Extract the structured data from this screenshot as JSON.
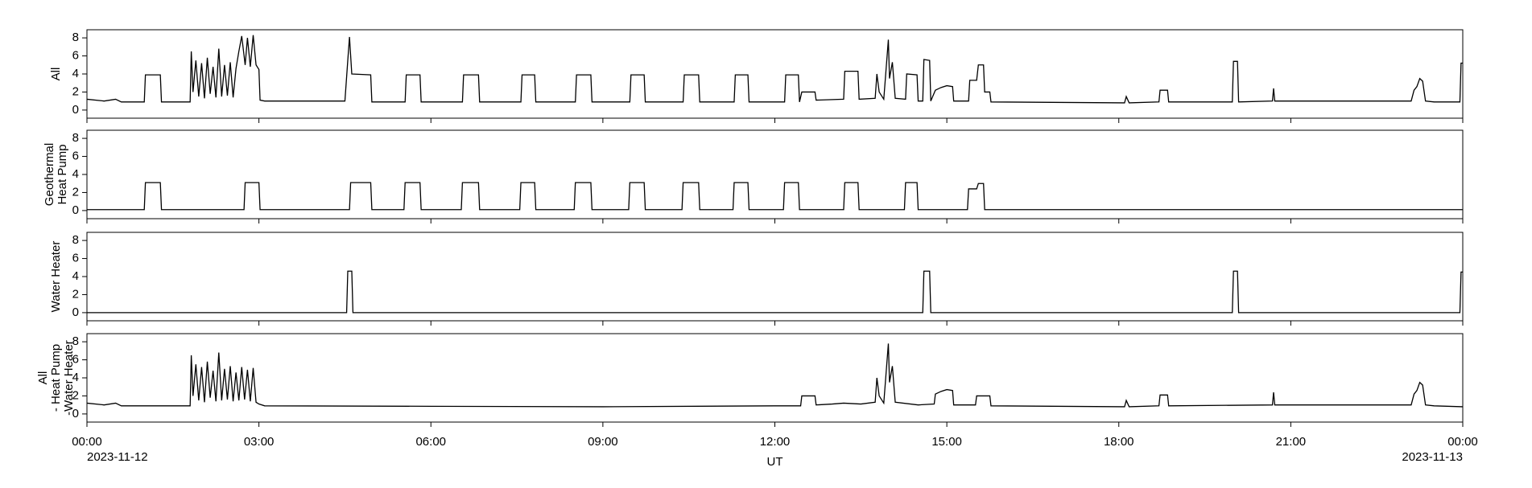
{
  "chart_data": [
    {
      "type": "line",
      "ylabel": [
        "All"
      ],
      "color": "#000000",
      "xlim": [
        0,
        24
      ],
      "ylim": [
        -0.9,
        8.9
      ],
      "yticks": [
        0,
        2,
        4,
        6,
        8
      ],
      "xticks": [
        0,
        3,
        6,
        9,
        12,
        15,
        18,
        21,
        24
      ],
      "x": [
        0,
        0.3,
        0.5,
        0.6,
        1.0,
        1.02,
        1.28,
        1.3,
        1.8,
        1.82,
        1.85,
        1.9,
        1.95,
        2.0,
        2.05,
        2.1,
        2.15,
        2.2,
        2.25,
        2.3,
        2.35,
        2.4,
        2.45,
        2.5,
        2.55,
        2.6,
        2.65,
        2.7,
        2.76,
        2.8,
        2.85,
        2.9,
        2.95,
        3.0,
        3.02,
        3.1,
        4.5,
        4.55,
        4.58,
        4.62,
        4.95,
        4.97,
        5.55,
        5.57,
        5.81,
        5.83,
        6.55,
        6.57,
        6.83,
        6.85,
        7.57,
        7.59,
        7.81,
        7.83,
        8.52,
        8.54,
        8.79,
        8.81,
        9.47,
        9.49,
        9.72,
        9.74,
        10.4,
        10.42,
        10.67,
        10.69,
        11.29,
        11.31,
        11.53,
        11.55,
        12.17,
        12.19,
        12.41,
        12.43,
        12.47,
        12.7,
        12.72,
        13.2,
        13.22,
        13.45,
        13.47,
        13.75,
        13.78,
        13.82,
        13.9,
        13.98,
        14.0,
        14.05,
        14.1,
        14.28,
        14.3,
        14.48,
        14.5,
        14.58,
        14.6,
        14.7,
        14.72,
        14.8,
        14.9,
        15.0,
        15.1,
        15.12,
        15.38,
        15.4,
        15.52,
        15.55,
        15.64,
        15.66,
        15.75,
        15.77,
        18.1,
        18.13,
        18.18,
        18.7,
        18.72,
        18.85,
        18.87,
        19.98,
        20.0,
        20.07,
        20.09,
        20.68,
        20.7,
        20.72,
        23.1,
        23.15,
        23.2,
        23.25,
        23.3,
        23.35,
        23.5,
        23.95,
        23.97,
        24
      ],
      "values": [
        1.2,
        1.0,
        1.2,
        0.9,
        0.9,
        3.9,
        3.9,
        0.9,
        0.9,
        6.5,
        2.0,
        5.5,
        1.5,
        5.2,
        1.3,
        5.8,
        1.8,
        4.8,
        1.4,
        6.8,
        1.5,
        5.0,
        1.6,
        5.3,
        1.4,
        4.6,
        6.5,
        8.2,
        5.0,
        8.0,
        4.8,
        8.3,
        5.0,
        4.5,
        1.1,
        1.0,
        1.0,
        5.5,
        8.1,
        4.0,
        3.9,
        0.9,
        0.9,
        3.9,
        3.9,
        0.9,
        0.9,
        3.9,
        3.9,
        0.9,
        0.9,
        3.9,
        3.9,
        0.9,
        0.9,
        3.9,
        3.9,
        0.9,
        0.9,
        3.9,
        3.9,
        0.9,
        0.9,
        3.9,
        3.9,
        0.9,
        0.9,
        3.9,
        3.9,
        0.9,
        0.9,
        3.9,
        3.9,
        0.9,
        2.0,
        2.0,
        1.1,
        1.2,
        4.3,
        4.3,
        1.2,
        1.3,
        4.0,
        2.0,
        1.2,
        7.8,
        3.5,
        5.3,
        1.3,
        1.2,
        4.0,
        3.9,
        1.0,
        1.0,
        5.6,
        5.5,
        1.0,
        2.2,
        2.5,
        2.7,
        2.6,
        1.0,
        1.0,
        3.3,
        3.3,
        5.0,
        5.0,
        2.0,
        2.0,
        0.9,
        0.8,
        1.5,
        0.8,
        0.9,
        2.2,
        2.2,
        0.9,
        0.9,
        5.4,
        5.4,
        0.9,
        1.0,
        2.4,
        1.0,
        1.0,
        2.2,
        2.6,
        3.5,
        3.2,
        1.0,
        0.9,
        0.9,
        5.2,
        5.2
      ]
    },
    {
      "type": "line",
      "ylabel": [
        "Geothermal",
        "Heat Pump"
      ],
      "color": "#000000",
      "xlim": [
        0,
        24
      ],
      "ylim": [
        -0.9,
        8.9
      ],
      "yticks": [
        0,
        2,
        4,
        6,
        8
      ],
      "xticks": [
        0,
        3,
        6,
        9,
        12,
        15,
        18,
        21,
        24
      ],
      "x": [
        0,
        1.0,
        1.02,
        1.28,
        1.3,
        2.74,
        2.76,
        3.0,
        3.02,
        4.58,
        4.6,
        4.95,
        4.97,
        5.53,
        5.55,
        5.81,
        5.83,
        6.53,
        6.55,
        6.83,
        6.85,
        7.55,
        7.57,
        7.81,
        7.83,
        8.5,
        8.52,
        8.79,
        8.81,
        9.45,
        9.47,
        9.72,
        9.74,
        10.38,
        10.4,
        10.67,
        10.69,
        11.27,
        11.29,
        11.53,
        11.55,
        12.15,
        12.17,
        12.41,
        12.43,
        13.2,
        13.22,
        13.45,
        13.47,
        14.26,
        14.28,
        14.48,
        14.5,
        15.36,
        15.38,
        15.52,
        15.55,
        15.64,
        15.66,
        24
      ],
      "values": [
        0.1,
        0.1,
        3.1,
        3.1,
        0.1,
        0.1,
        3.1,
        3.1,
        0.1,
        0.1,
        3.1,
        3.1,
        0.1,
        0.1,
        3.1,
        3.1,
        0.1,
        0.1,
        3.1,
        3.1,
        0.1,
        0.1,
        3.1,
        3.1,
        0.1,
        0.1,
        3.1,
        3.1,
        0.1,
        0.1,
        3.1,
        3.1,
        0.1,
        0.1,
        3.1,
        3.1,
        0.1,
        0.1,
        3.1,
        3.1,
        0.1,
        0.1,
        3.1,
        3.1,
        0.1,
        0.1,
        3.1,
        3.1,
        0.1,
        0.1,
        3.1,
        3.1,
        0.1,
        0.1,
        2.4,
        2.4,
        3.0,
        3.0,
        0.1,
        0.1
      ]
    },
    {
      "type": "line",
      "ylabel": [
        "Water Heater"
      ],
      "color": "#000000",
      "xlim": [
        0,
        24
      ],
      "ylim": [
        -0.9,
        8.9
      ],
      "yticks": [
        0,
        2,
        4,
        6,
        8
      ],
      "xticks": [
        0,
        3,
        6,
        9,
        12,
        15,
        18,
        21,
        24
      ],
      "x": [
        0,
        4.53,
        4.55,
        4.62,
        4.64,
        14.58,
        14.6,
        14.7,
        14.72,
        19.98,
        20.0,
        20.07,
        20.09,
        23.95,
        23.97,
        24
      ],
      "values": [
        0,
        0,
        4.6,
        4.6,
        0,
        0,
        4.6,
        4.6,
        0,
        0,
        4.6,
        4.6,
        0,
        0,
        4.5,
        4.5
      ]
    },
    {
      "type": "line",
      "ylabel": [
        "All",
        "- Heat Pump",
        "-Water Heater"
      ],
      "color": "#000000",
      "xlabel": "UT",
      "xlim": [
        0,
        24
      ],
      "ylim": [
        -0.9,
        8.9
      ],
      "yticks": [
        0,
        2,
        4,
        6,
        8
      ],
      "xticks": [
        {
          "value": 0,
          "label": "00:00"
        },
        {
          "value": 3,
          "label": "03:00"
        },
        {
          "value": 6,
          "label": "06:00"
        },
        {
          "value": 9,
          "label": "09:00"
        },
        {
          "value": 12,
          "label": "12:00"
        },
        {
          "value": 15,
          "label": "15:00"
        },
        {
          "value": 18,
          "label": "18:00"
        },
        {
          "value": 21,
          "label": "21:00"
        },
        {
          "value": 24,
          "label": "00:00"
        }
      ],
      "xtick_dates": [
        {
          "value": 0,
          "label": "2023-11-12"
        },
        {
          "value": 24,
          "label": "2023-11-13"
        }
      ],
      "x": [
        0,
        0.3,
        0.5,
        0.6,
        1.8,
        1.82,
        1.85,
        1.9,
        1.95,
        2.0,
        2.05,
        2.1,
        2.15,
        2.2,
        2.25,
        2.3,
        2.35,
        2.4,
        2.45,
        2.5,
        2.55,
        2.6,
        2.65,
        2.7,
        2.75,
        2.8,
        2.85,
        2.9,
        2.95,
        3.0,
        3.1,
        6,
        9,
        12.0,
        12.45,
        12.47,
        12.7,
        12.72,
        13.0,
        13.2,
        13.5,
        13.75,
        13.78,
        13.82,
        13.9,
        13.98,
        14.0,
        14.05,
        14.1,
        14.5,
        14.78,
        14.8,
        14.9,
        15.0,
        15.1,
        15.12,
        15.5,
        15.52,
        15.75,
        15.77,
        18.1,
        18.13,
        18.18,
        18.7,
        18.72,
        18.85,
        18.87,
        20.68,
        20.7,
        20.72,
        23.1,
        23.15,
        23.2,
        23.25,
        23.3,
        23.35,
        23.5,
        24
      ],
      "values": [
        1.2,
        1.0,
        1.2,
        0.9,
        0.9,
        6.5,
        2.0,
        5.5,
        1.5,
        5.2,
        1.3,
        5.8,
        1.8,
        4.8,
        1.4,
        6.8,
        1.5,
        5.0,
        1.6,
        5.3,
        1.4,
        4.6,
        1.5,
        5.2,
        1.6,
        4.9,
        1.4,
        5.1,
        1.3,
        1.1,
        0.9,
        0.85,
        0.8,
        0.9,
        0.9,
        2.0,
        2.0,
        1.0,
        1.1,
        1.2,
        1.1,
        1.3,
        4.0,
        2.0,
        1.2,
        7.8,
        3.5,
        5.3,
        1.3,
        1.0,
        1.1,
        2.2,
        2.5,
        2.7,
        2.6,
        1.0,
        1.0,
        2.0,
        2.0,
        0.9,
        0.8,
        1.5,
        0.8,
        0.9,
        2.1,
        2.1,
        0.9,
        1.0,
        2.4,
        1.0,
        1.0,
        2.2,
        2.6,
        3.5,
        3.2,
        1.0,
        0.9,
        0.8
      ]
    }
  ]
}
